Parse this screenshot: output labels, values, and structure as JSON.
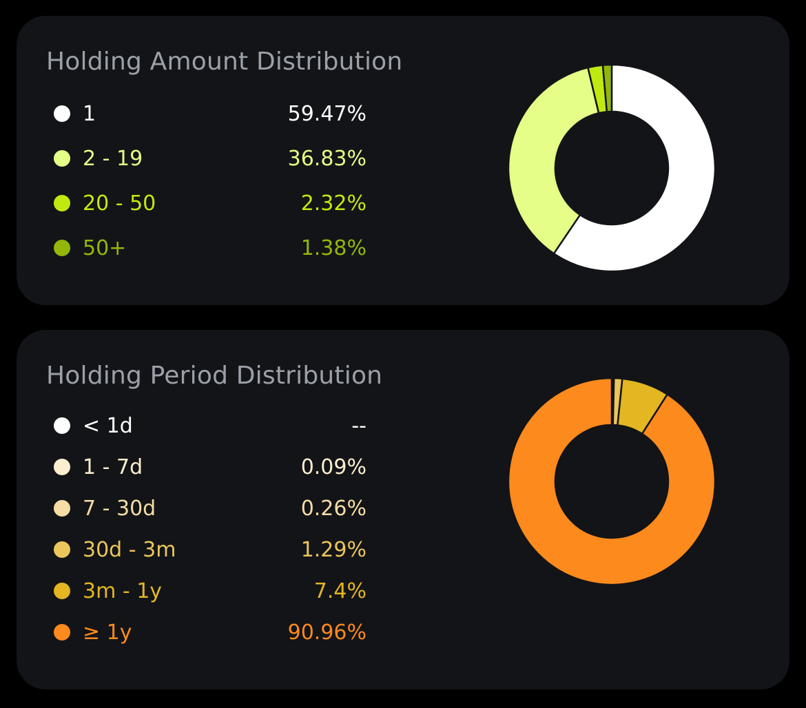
{
  "chart_data": [
    {
      "type": "pie",
      "variant": "donut",
      "title": "Holding Amount Distribution",
      "labels": [
        "1",
        "2 - 19",
        "20 - 50",
        "50+"
      ],
      "values": [
        59.47,
        36.83,
        2.32,
        1.38
      ],
      "display_values": [
        "59.47%",
        "36.83%",
        "2.32%",
        "1.38%"
      ],
      "colors": [
        "#ffffff",
        "#e4fe87",
        "#c0ea0f",
        "#92b709"
      ],
      "legend_position": "left"
    },
    {
      "type": "pie",
      "variant": "donut",
      "title": "Holding Period Distribution",
      "labels": [
        "< 1d",
        "1 - 7d",
        "7 - 30d",
        "30d - 3m",
        "3m - 1y",
        "≥ 1y"
      ],
      "values": [
        0,
        0.09,
        0.26,
        1.29,
        7.4,
        90.96
      ],
      "display_values": [
        "--",
        "0.09%",
        "0.26%",
        "1.29%",
        "7.4%",
        "90.96%"
      ],
      "colors": [
        "#ffffff",
        "#fcefd0",
        "#f6dda4",
        "#ebc65c",
        "#e3b622",
        "#fd8a1d"
      ],
      "legend_position": "left"
    }
  ]
}
